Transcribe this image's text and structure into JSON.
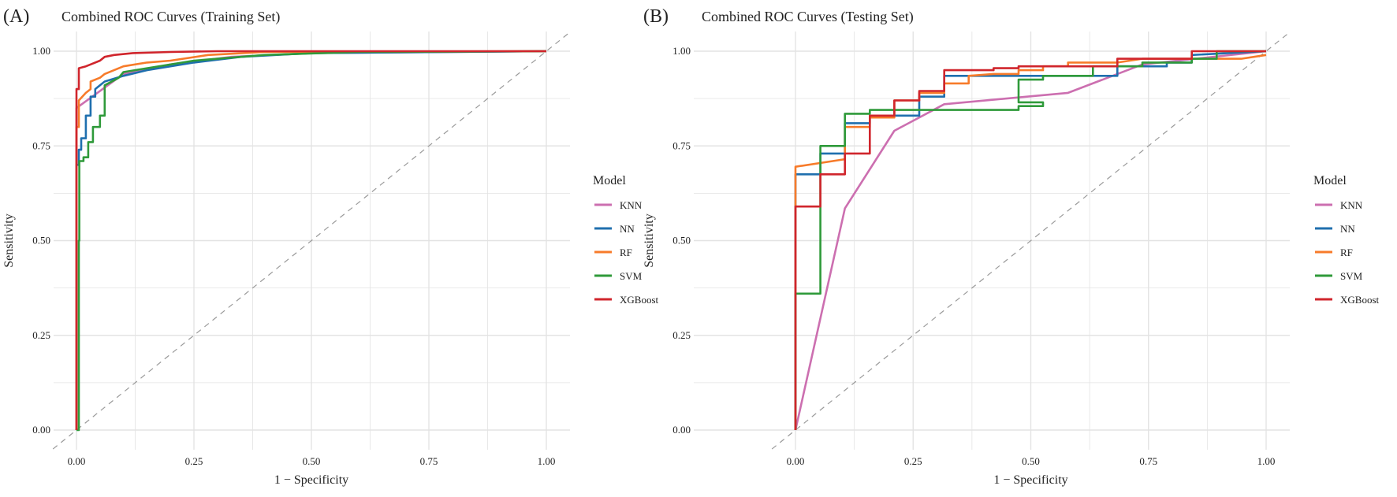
{
  "colors": {
    "KNN": "#cc6fb0",
    "NN": "#1f6fae",
    "RF": "#f77b2a",
    "SVM": "#2f9a3a",
    "XGBoost": "#d0252c",
    "diagonal": "#9a9a9a",
    "grid": "#e3e3e3"
  },
  "chart_data": [
    {
      "type": "line",
      "panel_label": "(A)",
      "title": "Combined ROC Curves (Training Set)",
      "xlabel": "1 − Specificity",
      "ylabel": "Sensitivity",
      "xlim": [
        0,
        1
      ],
      "ylim": [
        0,
        1
      ],
      "xticks": [
        "0.00",
        "0.25",
        "0.50",
        "0.75",
        "1.00"
      ],
      "yticks": [
        "0.00",
        "0.25",
        "0.50",
        "0.75",
        "1.00"
      ],
      "grid": true,
      "legend": {
        "title": "Model",
        "position": "right",
        "entries": [
          "KNN",
          "NN",
          "RF",
          "SVM",
          "XGBoost"
        ]
      },
      "series": [
        {
          "name": "KNN",
          "points": [
            [
              0,
              0
            ],
            [
              0,
              0.85
            ],
            [
              0.1,
              0.94
            ],
            [
              0.2,
              0.965
            ],
            [
              0.33,
              0.985
            ],
            [
              0.5,
              0.995
            ],
            [
              1,
              1
            ]
          ]
        },
        {
          "name": "NN",
          "points": [
            [
              0,
              0
            ],
            [
              0,
              0.7
            ],
            [
              0.005,
              0.7
            ],
            [
              0.005,
              0.74
            ],
            [
              0.01,
              0.74
            ],
            [
              0.01,
              0.77
            ],
            [
              0.02,
              0.77
            ],
            [
              0.02,
              0.83
            ],
            [
              0.03,
              0.83
            ],
            [
              0.03,
              0.88
            ],
            [
              0.04,
              0.88
            ],
            [
              0.04,
              0.9
            ],
            [
              0.06,
              0.92
            ],
            [
              0.1,
              0.935
            ],
            [
              0.15,
              0.95
            ],
            [
              0.25,
              0.97
            ],
            [
              0.35,
              0.985
            ],
            [
              0.5,
              0.995
            ],
            [
              1,
              1
            ]
          ]
        },
        {
          "name": "RF",
          "points": [
            [
              0,
              0
            ],
            [
              0,
              0.8
            ],
            [
              0.005,
              0.8
            ],
            [
              0.005,
              0.87
            ],
            [
              0.02,
              0.89
            ],
            [
              0.03,
              0.9
            ],
            [
              0.03,
              0.92
            ],
            [
              0.05,
              0.93
            ],
            [
              0.06,
              0.94
            ],
            [
              0.1,
              0.96
            ],
            [
              0.15,
              0.97
            ],
            [
              0.2,
              0.975
            ],
            [
              0.28,
              0.99
            ],
            [
              0.4,
              0.998
            ],
            [
              1,
              1
            ]
          ]
        },
        {
          "name": "SVM",
          "points": [
            [
              0,
              0
            ],
            [
              0.005,
              0
            ],
            [
              0.005,
              0.5
            ],
            [
              0.006,
              0.5
            ],
            [
              0.006,
              0.71
            ],
            [
              0.015,
              0.71
            ],
            [
              0.015,
              0.72
            ],
            [
              0.025,
              0.72
            ],
            [
              0.025,
              0.76
            ],
            [
              0.035,
              0.76
            ],
            [
              0.035,
              0.8
            ],
            [
              0.05,
              0.8
            ],
            [
              0.05,
              0.83
            ],
            [
              0.06,
              0.83
            ],
            [
              0.06,
              0.91
            ],
            [
              0.09,
              0.93
            ],
            [
              0.1,
              0.945
            ],
            [
              0.15,
              0.955
            ],
            [
              0.25,
              0.975
            ],
            [
              0.4,
              0.99
            ],
            [
              0.6,
              0.998
            ],
            [
              1,
              1
            ]
          ]
        },
        {
          "name": "XGBoost",
          "points": [
            [
              0,
              0
            ],
            [
              0,
              0.9
            ],
            [
              0.005,
              0.9
            ],
            [
              0.005,
              0.955
            ],
            [
              0.02,
              0.96
            ],
            [
              0.03,
              0.965
            ],
            [
              0.05,
              0.975
            ],
            [
              0.06,
              0.985
            ],
            [
              0.08,
              0.99
            ],
            [
              0.12,
              0.995
            ],
            [
              0.2,
              0.998
            ],
            [
              0.3,
              1
            ],
            [
              1,
              1
            ]
          ]
        }
      ]
    },
    {
      "type": "line",
      "panel_label": "(B)",
      "title": "Combined ROC Curves (Testing Set)",
      "xlabel": "1 − Specificity",
      "ylabel": "Sensitivity",
      "xlim": [
        0,
        1
      ],
      "ylim": [
        0,
        1
      ],
      "xticks": [
        "0.00",
        "0.25",
        "0.50",
        "0.75",
        "1.00"
      ],
      "yticks": [
        "0.00",
        "0.25",
        "0.50",
        "0.75",
        "1.00"
      ],
      "grid": true,
      "legend": {
        "title": "Model",
        "position": "right",
        "entries": [
          "KNN",
          "NN",
          "RF",
          "SVM",
          "XGBoost"
        ]
      },
      "series": [
        {
          "name": "KNN",
          "points": [
            [
              0,
              0
            ],
            [
              0.105,
              0.585
            ],
            [
              0.21,
              0.79
            ],
            [
              0.316,
              0.86
            ],
            [
              0.579,
              0.89
            ],
            [
              0.737,
              0.965
            ],
            [
              1,
              1
            ]
          ]
        },
        {
          "name": "NN",
          "points": [
            [
              0,
              0
            ],
            [
              0,
              0.675
            ],
            [
              0.053,
              0.675
            ],
            [
              0.053,
              0.73
            ],
            [
              0.105,
              0.73
            ],
            [
              0.105,
              0.81
            ],
            [
              0.158,
              0.81
            ],
            [
              0.158,
              0.83
            ],
            [
              0.263,
              0.83
            ],
            [
              0.263,
              0.88
            ],
            [
              0.316,
              0.88
            ],
            [
              0.316,
              0.935
            ],
            [
              0.684,
              0.935
            ],
            [
              0.684,
              0.96
            ],
            [
              0.789,
              0.96
            ],
            [
              0.789,
              0.97
            ],
            [
              0.842,
              0.97
            ],
            [
              0.842,
              0.99
            ],
            [
              1,
              1
            ]
          ]
        },
        {
          "name": "RF",
          "points": [
            [
              0,
              0
            ],
            [
              0,
              0.695
            ],
            [
              0.105,
              0.715
            ],
            [
              0.105,
              0.8
            ],
            [
              0.158,
              0.8
            ],
            [
              0.158,
              0.825
            ],
            [
              0.21,
              0.825
            ],
            [
              0.21,
              0.87
            ],
            [
              0.263,
              0.87
            ],
            [
              0.263,
              0.89
            ],
            [
              0.316,
              0.89
            ],
            [
              0.316,
              0.915
            ],
            [
              0.368,
              0.915
            ],
            [
              0.368,
              0.935
            ],
            [
              0.421,
              0.94
            ],
            [
              0.474,
              0.94
            ],
            [
              0.474,
              0.95
            ],
            [
              0.526,
              0.95
            ],
            [
              0.526,
              0.96
            ],
            [
              0.579,
              0.96
            ],
            [
              0.579,
              0.97
            ],
            [
              0.684,
              0.97
            ],
            [
              0.737,
              0.98
            ],
            [
              0.842,
              0.98
            ],
            [
              0.947,
              0.98
            ],
            [
              1,
              0.99
            ]
          ]
        },
        {
          "name": "SVM",
          "points": [
            [
              0,
              0
            ],
            [
              0,
              0.36
            ],
            [
              0.053,
              0.36
            ],
            [
              0.053,
              0.75
            ],
            [
              0.105,
              0.75
            ],
            [
              0.105,
              0.835
            ],
            [
              0.158,
              0.835
            ],
            [
              0.158,
              0.845
            ],
            [
              0.474,
              0.845
            ],
            [
              0.474,
              0.855
            ],
            [
              0.526,
              0.855
            ],
            [
              0.526,
              0.865
            ],
            [
              0.474,
              0.865
            ],
            [
              0.474,
              0.925
            ],
            [
              0.526,
              0.925
            ],
            [
              0.526,
              0.935
            ],
            [
              0.632,
              0.935
            ],
            [
              0.632,
              0.96
            ],
            [
              0.737,
              0.96
            ],
            [
              0.737,
              0.97
            ],
            [
              0.842,
              0.97
            ],
            [
              0.842,
              0.98
            ],
            [
              0.895,
              0.98
            ],
            [
              0.895,
              1
            ],
            [
              1,
              1
            ]
          ]
        },
        {
          "name": "XGBoost",
          "points": [
            [
              0,
              0
            ],
            [
              0,
              0.59
            ],
            [
              0.053,
              0.59
            ],
            [
              0.053,
              0.675
            ],
            [
              0.105,
              0.675
            ],
            [
              0.105,
              0.73
            ],
            [
              0.158,
              0.73
            ],
            [
              0.158,
              0.83
            ],
            [
              0.21,
              0.83
            ],
            [
              0.21,
              0.87
            ],
            [
              0.263,
              0.87
            ],
            [
              0.263,
              0.895
            ],
            [
              0.316,
              0.895
            ],
            [
              0.316,
              0.95
            ],
            [
              0.421,
              0.95
            ],
            [
              0.421,
              0.955
            ],
            [
              0.474,
              0.955
            ],
            [
              0.474,
              0.96
            ],
            [
              0.684,
              0.96
            ],
            [
              0.684,
              0.98
            ],
            [
              0.842,
              0.98
            ],
            [
              0.842,
              1
            ],
            [
              1,
              1
            ]
          ]
        }
      ]
    }
  ]
}
